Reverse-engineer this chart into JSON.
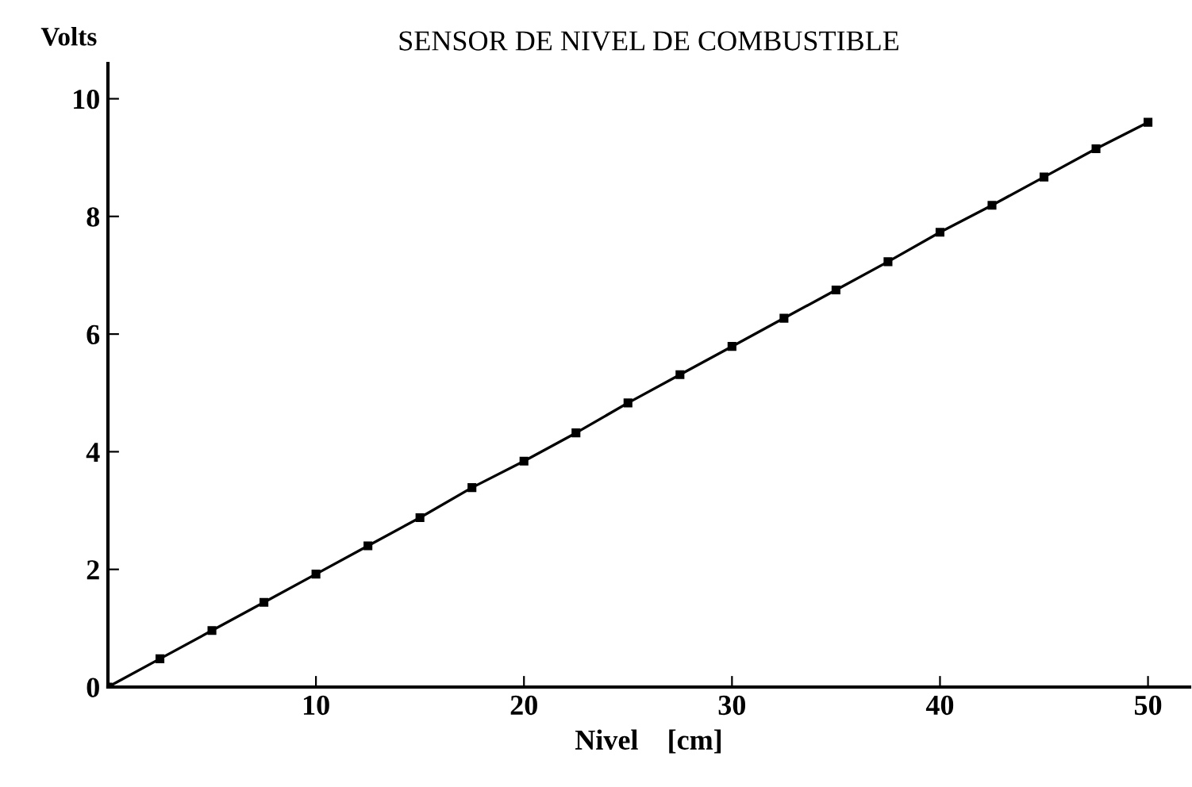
{
  "chart_data": {
    "type": "line",
    "title": "SENSOR DE NIVEL DE COMBUSTIBLE",
    "xlabel": "Nivel    [cm]",
    "ylabel": "Volts",
    "x": [
      0,
      2.5,
      5,
      7.5,
      10,
      12.5,
      15,
      17.5,
      20,
      22.5,
      25,
      27.5,
      30,
      32.5,
      35,
      37.5,
      40,
      42.5,
      45,
      47.5,
      50
    ],
    "series": [
      {
        "color": "#000000",
        "values": [
          0,
          0.48,
          0.96,
          1.44,
          1.92,
          2.4,
          2.88,
          3.39,
          3.84,
          4.32,
          4.83,
          5.31,
          5.79,
          6.27,
          6.75,
          7.23,
          7.73,
          8.19,
          8.67,
          9.15,
          9.6
        ]
      }
    ],
    "xlim": [
      0,
      52
    ],
    "ylim": [
      0,
      10.6
    ],
    "xticks": [
      10,
      20,
      30,
      40,
      50
    ],
    "yticks": [
      0,
      2,
      4,
      6,
      8,
      10
    ],
    "marker": "square",
    "line_style": "solid",
    "grid": false,
    "legend": false
  }
}
